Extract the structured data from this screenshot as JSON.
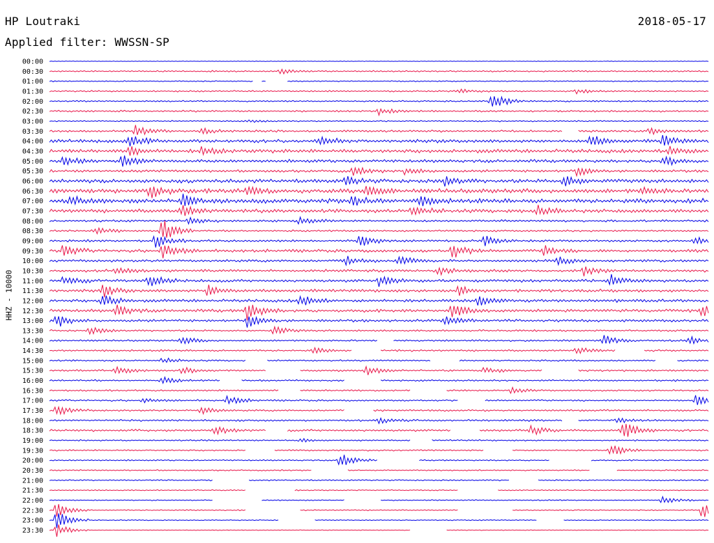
{
  "header": {
    "station": "HP Loutraki",
    "date": "2018-05-17",
    "filter": "Applied filter: WWSSN-SP"
  },
  "chart_data": {
    "type": "line",
    "title": "HP Loutraki",
    "date": "2018-05-17",
    "filter": "WWSSN-SP",
    "ylabel": "HHZ - 10000",
    "colors": {
      "odd": "#0000e6",
      "even": "#e8174a"
    },
    "rows": [
      {
        "label": "00:00",
        "amp": 0.3
      },
      {
        "label": "00:30",
        "amp": 0.8,
        "events": [
          {
            "t": 0.35,
            "a": 4
          }
        ]
      },
      {
        "label": "01:00",
        "amp": 0.6,
        "gaps": [
          [
            0.31,
            0.32
          ],
          [
            0.33,
            0.36
          ]
        ]
      },
      {
        "label": "01:30",
        "amp": 0.8,
        "events": [
          {
            "t": 0.62,
            "a": 3
          },
          {
            "t": 0.8,
            "a": 3
          }
        ]
      },
      {
        "label": "02:00",
        "amp": 0.8,
        "events": [
          {
            "t": 0.67,
            "a": 14
          }
        ]
      },
      {
        "label": "02:30",
        "amp": 1.0,
        "events": [
          {
            "t": 0.5,
            "a": 5
          }
        ]
      },
      {
        "label": "03:00",
        "amp": 0.7,
        "events": [
          {
            "t": 0.3,
            "a": 2
          }
        ]
      },
      {
        "label": "03:30",
        "amp": 1.2,
        "events": [
          {
            "t": 0.13,
            "a": 8
          },
          {
            "t": 0.23,
            "a": 4
          },
          {
            "t": 0.91,
            "a": 6
          }
        ],
        "gaps": [
          [
            0.78,
            0.8
          ]
        ]
      },
      {
        "label": "04:00",
        "amp": 1.8,
        "events": [
          {
            "t": 0.12,
            "a": 8
          },
          {
            "t": 0.41,
            "a": 7
          },
          {
            "t": 0.82,
            "a": 8
          },
          {
            "t": 0.93,
            "a": 8
          }
        ]
      },
      {
        "label": "04:30",
        "amp": 2.0,
        "events": [
          {
            "t": 0.12,
            "a": 8
          },
          {
            "t": 0.23,
            "a": 7
          },
          {
            "t": 0.94,
            "a": 7
          }
        ]
      },
      {
        "label": "05:00",
        "amp": 1.6,
        "events": [
          {
            "t": 0.02,
            "a": 8
          },
          {
            "t": 0.11,
            "a": 9
          },
          {
            "t": 0.93,
            "a": 8
          }
        ]
      },
      {
        "label": "05:30",
        "amp": 1.4,
        "events": [
          {
            "t": 0.46,
            "a": 6
          },
          {
            "t": 0.54,
            "a": 6
          },
          {
            "t": 0.8,
            "a": 7
          }
        ]
      },
      {
        "label": "06:00",
        "amp": 2.0,
        "events": [
          {
            "t": 0.45,
            "a": 6
          },
          {
            "t": 0.6,
            "a": 6
          },
          {
            "t": 0.78,
            "a": 8
          }
        ]
      },
      {
        "label": "06:30",
        "amp": 2.4,
        "events": [
          {
            "t": 0.15,
            "a": 10
          },
          {
            "t": 0.3,
            "a": 7
          },
          {
            "t": 0.48,
            "a": 7
          },
          {
            "t": 0.9,
            "a": 6
          }
        ]
      },
      {
        "label": "07:00",
        "amp": 2.4,
        "events": [
          {
            "t": 0.03,
            "a": 7
          },
          {
            "t": 0.2,
            "a": 9
          },
          {
            "t": 0.46,
            "a": 8
          },
          {
            "t": 0.56,
            "a": 7
          }
        ]
      },
      {
        "label": "07:30",
        "amp": 2.0,
        "events": [
          {
            "t": 0.2,
            "a": 8
          },
          {
            "t": 0.55,
            "a": 7
          },
          {
            "t": 0.74,
            "a": 8
          }
        ]
      },
      {
        "label": "08:00",
        "amp": 1.2,
        "events": [
          {
            "t": 0.21,
            "a": 6
          },
          {
            "t": 0.38,
            "a": 6
          }
        ]
      },
      {
        "label": "08:30",
        "amp": 1.0,
        "events": [
          {
            "t": 0.07,
            "a": 6
          },
          {
            "t": 0.17,
            "a": 20
          }
        ]
      },
      {
        "label": "09:00",
        "amp": 1.2,
        "events": [
          {
            "t": 0.16,
            "a": 10
          },
          {
            "t": 0.47,
            "a": 9
          },
          {
            "t": 0.66,
            "a": 8
          },
          {
            "t": 0.98,
            "a": 6
          }
        ]
      },
      {
        "label": "09:30",
        "amp": 1.6,
        "events": [
          {
            "t": 0.02,
            "a": 8
          },
          {
            "t": 0.17,
            "a": 13
          },
          {
            "t": 0.61,
            "a": 12
          },
          {
            "t": 0.75,
            "a": 8
          }
        ]
      },
      {
        "label": "10:00",
        "amp": 1.4,
        "events": [
          {
            "t": 0.45,
            "a": 6
          },
          {
            "t": 0.53,
            "a": 6
          },
          {
            "t": 0.77,
            "a": 6
          }
        ]
      },
      {
        "label": "10:30",
        "amp": 1.4,
        "events": [
          {
            "t": 0.1,
            "a": 5
          },
          {
            "t": 0.59,
            "a": 6
          },
          {
            "t": 0.81,
            "a": 7
          }
        ]
      },
      {
        "label": "11:00",
        "amp": 1.6,
        "events": [
          {
            "t": 0.02,
            "a": 6
          },
          {
            "t": 0.15,
            "a": 11
          },
          {
            "t": 0.5,
            "a": 8
          },
          {
            "t": 0.85,
            "a": 9
          }
        ]
      },
      {
        "label": "11:30",
        "amp": 1.6,
        "events": [
          {
            "t": 0.08,
            "a": 9
          },
          {
            "t": 0.24,
            "a": 9
          },
          {
            "t": 0.62,
            "a": 8
          }
        ]
      },
      {
        "label": "12:00",
        "amp": 1.6,
        "events": [
          {
            "t": 0.08,
            "a": 10
          },
          {
            "t": 0.38,
            "a": 9
          },
          {
            "t": 0.65,
            "a": 8
          }
        ]
      },
      {
        "label": "12:30",
        "amp": 1.6,
        "events": [
          {
            "t": 0.1,
            "a": 9
          },
          {
            "t": 0.3,
            "a": 14
          },
          {
            "t": 0.61,
            "a": 10
          },
          {
            "t": 0.99,
            "a": 10
          }
        ]
      },
      {
        "label": "13:00",
        "amp": 1.4,
        "events": [
          {
            "t": 0.01,
            "a": 10
          },
          {
            "t": 0.3,
            "a": 10
          },
          {
            "t": 0.6,
            "a": 9
          }
        ]
      },
      {
        "label": "13:30",
        "amp": 1.0,
        "events": [
          {
            "t": 0.06,
            "a": 6
          },
          {
            "t": 0.34,
            "a": 6
          }
        ]
      },
      {
        "label": "14:00",
        "amp": 1.0,
        "events": [
          {
            "t": 0.2,
            "a": 6
          },
          {
            "t": 0.84,
            "a": 8
          },
          {
            "t": 0.97,
            "a": 6
          }
        ],
        "gaps": [
          [
            0.5,
            0.52
          ]
        ]
      },
      {
        "label": "14:30",
        "amp": 1.0,
        "events": [
          {
            "t": 0.4,
            "a": 4
          },
          {
            "t": 0.8,
            "a": 6
          }
        ],
        "gaps": [
          [
            0.46,
            0.5
          ],
          [
            0.86,
            0.9
          ]
        ]
      },
      {
        "label": "15:00",
        "amp": 0.9,
        "events": [
          {
            "t": 0.17,
            "a": 4
          }
        ],
        "gaps": [
          [
            0.3,
            0.33
          ],
          [
            0.58,
            0.62
          ],
          [
            0.92,
            0.95
          ]
        ]
      },
      {
        "label": "15:30",
        "amp": 1.0,
        "events": [
          {
            "t": 0.1,
            "a": 6
          },
          {
            "t": 0.2,
            "a": 6
          },
          {
            "t": 0.48,
            "a": 7
          },
          {
            "t": 0.66,
            "a": 5
          }
        ],
        "gaps": [
          [
            0.33,
            0.38
          ],
          [
            0.75,
            0.8
          ]
        ]
      },
      {
        "label": "16:00",
        "amp": 0.9,
        "events": [
          {
            "t": 0.17,
            "a": 5
          }
        ],
        "gaps": [
          [
            0.26,
            0.29
          ],
          [
            0.45,
            0.5
          ]
        ]
      },
      {
        "label": "16:30",
        "amp": 0.9,
        "events": [
          {
            "t": 0.7,
            "a": 4
          }
        ],
        "gaps": [
          [
            0.35,
            0.38
          ],
          [
            0.55,
            0.6
          ]
        ]
      },
      {
        "label": "17:00",
        "amp": 0.9,
        "events": [
          {
            "t": 0.14,
            "a": 4
          },
          {
            "t": 0.27,
            "a": 7
          },
          {
            "t": 0.98,
            "a": 7
          }
        ],
        "gaps": [
          [
            0.62,
            0.66
          ]
        ]
      },
      {
        "label": "17:30",
        "amp": 1.0,
        "events": [
          {
            "t": 0.01,
            "a": 8
          },
          {
            "t": 0.23,
            "a": 6
          }
        ],
        "gaps": [
          [
            0.45,
            0.49
          ]
        ]
      },
      {
        "label": "18:00",
        "amp": 1.0,
        "events": [
          {
            "t": 0.5,
            "a": 4
          },
          {
            "t": 0.86,
            "a": 4
          }
        ],
        "gaps": [
          [
            0.78,
            0.8
          ]
        ]
      },
      {
        "label": "18:30",
        "amp": 1.2,
        "events": [
          {
            "t": 0.25,
            "a": 7
          },
          {
            "t": 0.73,
            "a": 8
          },
          {
            "t": 0.87,
            "a": 14
          }
        ],
        "gaps": [
          [
            0.33,
            0.36
          ],
          [
            0.61,
            0.65
          ]
        ]
      },
      {
        "label": "19:00",
        "amp": 0.8,
        "events": [
          {
            "t": 0.38,
            "a": 3
          }
        ],
        "gaps": [
          [
            0.55,
            0.58
          ]
        ]
      },
      {
        "label": "19:30",
        "amp": 0.8,
        "events": [
          {
            "t": 0.85,
            "a": 10
          }
        ],
        "gaps": [
          [
            0.3,
            0.34
          ],
          [
            0.66,
            0.7
          ]
        ]
      },
      {
        "label": "20:00",
        "amp": 0.7,
        "events": [
          {
            "t": 0.44,
            "a": 12
          }
        ],
        "gaps": [
          [
            0.5,
            0.56
          ],
          [
            0.76,
            0.82
          ]
        ]
      },
      {
        "label": "20:30",
        "amp": 0.7,
        "events": [],
        "gaps": [
          [
            0.4,
            0.45
          ],
          [
            0.82,
            0.86
          ]
        ]
      },
      {
        "label": "21:00",
        "amp": 0.7,
        "events": [],
        "gaps": [
          [
            0.25,
            0.3
          ],
          [
            0.7,
            0.74
          ]
        ]
      },
      {
        "label": "21:30",
        "amp": 0.6,
        "events": [],
        "gaps": [
          [
            0.3,
            0.37
          ],
          [
            0.62,
            0.68
          ]
        ]
      },
      {
        "label": "22:00",
        "amp": 0.6,
        "events": [
          {
            "t": 0.93,
            "a": 6
          }
        ],
        "gaps": [
          [
            0.25,
            0.32
          ],
          [
            0.45,
            0.5
          ]
        ]
      },
      {
        "label": "22:30",
        "amp": 0.6,
        "events": [
          {
            "t": 0.01,
            "a": 12
          },
          {
            "t": 0.99,
            "a": 12
          }
        ],
        "gaps": [
          [
            0.3,
            0.38
          ],
          [
            0.62,
            0.7
          ]
        ]
      },
      {
        "label": "23:00",
        "amp": 0.5,
        "events": [
          {
            "t": 0.01,
            "a": 16
          }
        ],
        "gaps": [
          [
            0.35,
            0.4
          ],
          [
            0.74,
            0.78
          ]
        ]
      },
      {
        "label": "23:30",
        "amp": 0.4,
        "events": [
          {
            "t": 0.01,
            "a": 10
          }
        ],
        "gaps": [
          [
            0.55,
            0.6
          ]
        ]
      }
    ]
  }
}
